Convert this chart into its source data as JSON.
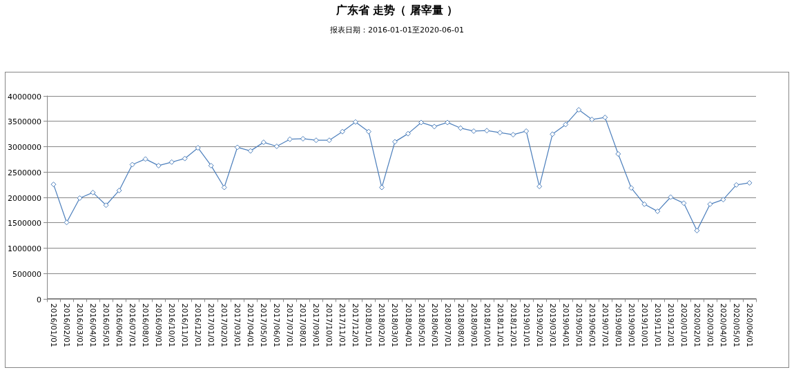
{
  "chart_data": {
    "type": "line",
    "title": "广东省 走势（ 屠宰量 ）",
    "subtitle": "报表日期：2016-01-01至2020-06-01",
    "categories": [
      "2016/01/01",
      "2016/02/01",
      "2016/03/01",
      "2016/04/01",
      "2016/05/01",
      "2016/06/01",
      "2016/07/01",
      "2016/08/01",
      "2016/09/01",
      "2016/10/01",
      "2016/11/01",
      "2016/12/01",
      "2017/01/01",
      "2017/02/01",
      "2017/03/01",
      "2017/04/01",
      "2017/05/01",
      "2017/06/01",
      "2017/07/01",
      "2017/08/01",
      "2017/09/01",
      "2017/10/01",
      "2017/11/01",
      "2017/12/01",
      "2018/01/01",
      "2018/02/01",
      "2018/03/01",
      "2018/04/01",
      "2018/05/01",
      "2018/06/01",
      "2018/07/01",
      "2018/08/01",
      "2018/09/01",
      "2018/10/01",
      "2018/11/01",
      "2018/12/01",
      "2019/01/01",
      "2019/02/01",
      "2019/03/01",
      "2019/04/01",
      "2019/05/01",
      "2019/06/01",
      "2019/07/01",
      "2019/08/01",
      "2019/09/01",
      "2019/10/01",
      "2019/11/01",
      "2019/12/01",
      "2020/01/01",
      "2020/02/01",
      "2020/03/01",
      "2020/04/01",
      "2020/05/01",
      "2020/06/01"
    ],
    "series": [
      {
        "color": "#4f81bd",
        "values": [
          2250000,
          1500000,
          1980000,
          2090000,
          1840000,
          2130000,
          2640000,
          2750000,
          2620000,
          2690000,
          2760000,
          2970000,
          2620000,
          2190000,
          2980000,
          2910000,
          3080000,
          3000000,
          3140000,
          3150000,
          3120000,
          3120000,
          3290000,
          3480000,
          3290000,
          2190000,
          3090000,
          3250000,
          3470000,
          3390000,
          3470000,
          3360000,
          3300000,
          3310000,
          3270000,
          3230000,
          3300000,
          2210000,
          3240000,
          3430000,
          3720000,
          3530000,
          3570000,
          2850000,
          2180000,
          1860000,
          1720000,
          2000000,
          1880000,
          1340000,
          1860000,
          1950000,
          2240000,
          2280000
        ]
      }
    ],
    "ylim": [
      0,
      4000000
    ],
    "yticks": [
      0,
      500000,
      1000000,
      1500000,
      2000000,
      2500000,
      3000000,
      3500000,
      4000000
    ],
    "grid": "y",
    "marker": "diamond",
    "line_style": "solid"
  }
}
